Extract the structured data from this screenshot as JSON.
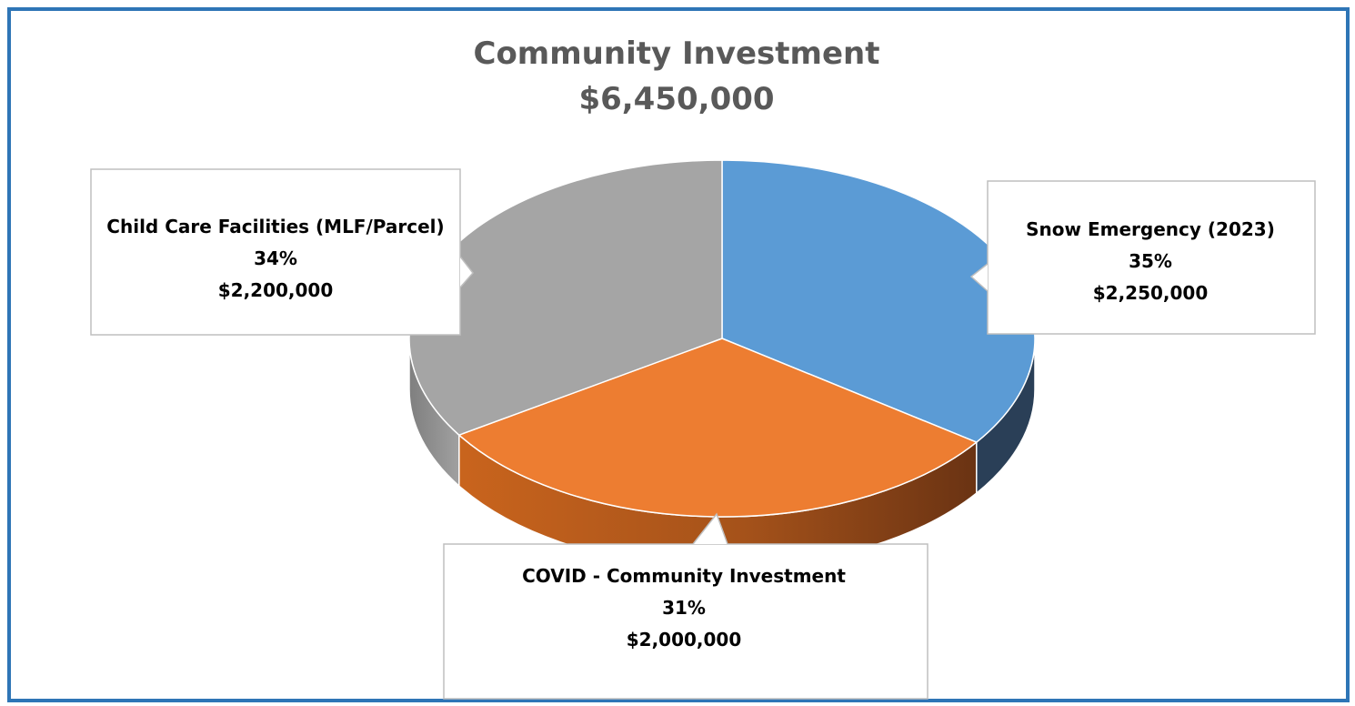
{
  "colors": {
    "border": "#2e75b6",
    "title": "#595959"
  },
  "chart_data": {
    "type": "pie",
    "title": "Community Investment",
    "subtitle": "$6,450,000",
    "categories": [
      "Snow Emergency (2023)",
      "COVID - Community Investment",
      "Child Care Facilities (MLF/Parcel)"
    ],
    "values": [
      2250000,
      2000000,
      2200000
    ],
    "percent_labels": [
      "35%",
      "31%",
      "34%"
    ],
    "value_labels": [
      "$2,250,000",
      "$2,000,000",
      "$2,200,000"
    ],
    "colors": [
      "#5b9bd5",
      "#ed7d31",
      "#a5a5a5"
    ],
    "style": "3d",
    "start": "12 o'clock, clockwise",
    "legend": "none (callout data labels)"
  }
}
